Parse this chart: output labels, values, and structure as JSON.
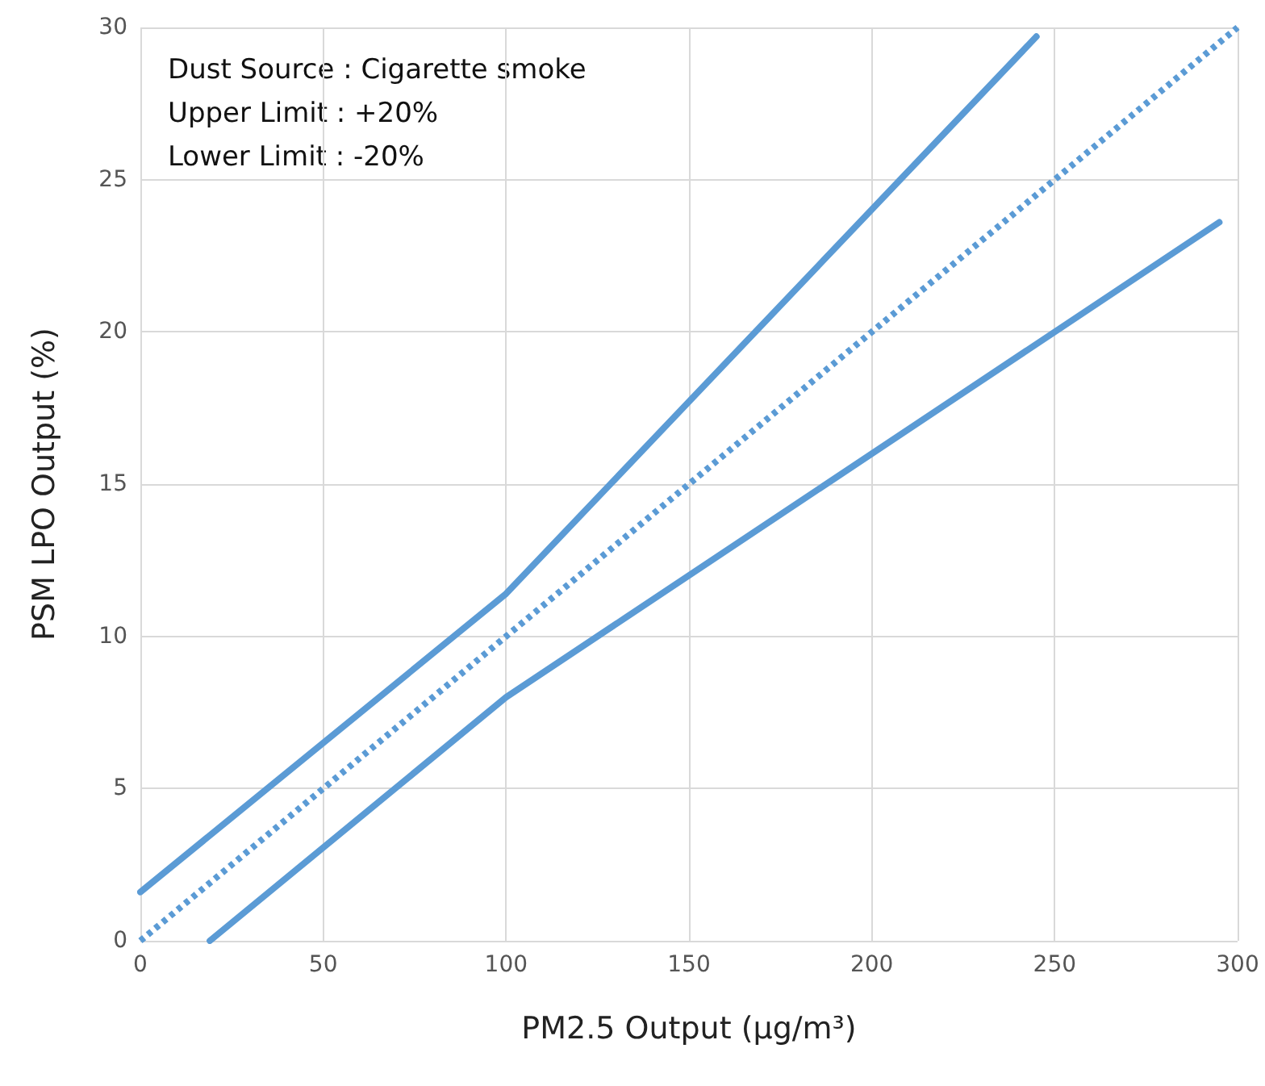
{
  "chart_data": {
    "type": "line",
    "xlabel": "PM2.5 Output (µg/m³)",
    "ylabel": "PSM LPO Output (%)",
    "annotations": [
      "Dust Source : Cigarette smoke",
      "Upper Limit : +20%",
      "Lower Limit : -20%"
    ],
    "series": [
      {
        "color": "#5b9bd5",
        "x": [
          0,
          100,
          245
        ],
        "values": [
          1.6,
          11.4,
          29.7
        ],
        "line_style": "solid"
      },
      {
        "color": "#5b9bd5",
        "x": [
          0,
          300
        ],
        "values": [
          0,
          30
        ],
        "line_style": "dotted"
      },
      {
        "color": "#5b9bd5",
        "x": [
          19,
          100,
          295
        ],
        "values": [
          0,
          8,
          23.6
        ],
        "line_style": "solid"
      }
    ],
    "xlim": [
      0,
      300
    ],
    "xticks": [
      0,
      50,
      100,
      150,
      200,
      250,
      300
    ],
    "ylim": [
      0,
      30
    ],
    "yticks": [
      0,
      5,
      10,
      15,
      20,
      25,
      30
    ],
    "grid": true,
    "marker": "none"
  }
}
